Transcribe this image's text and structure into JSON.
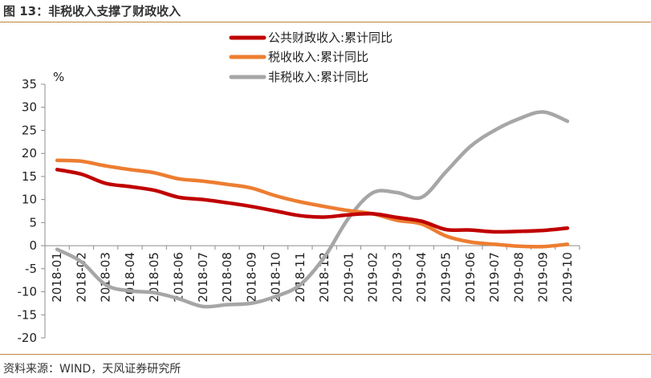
{
  "figure": {
    "title": "图 13：非税收入支撑了财政收入",
    "source": "资料来源：WIND，天风证券研究所"
  },
  "chart_data": {
    "type": "line",
    "ylabel": "%",
    "ylim": [
      -20,
      35
    ],
    "yticks": [
      35,
      30,
      25,
      20,
      15,
      10,
      5,
      0,
      -5,
      -10,
      -15,
      -20
    ],
    "categories": [
      "2018-01",
      "2018-02",
      "2018-03",
      "2018-04",
      "2018-05",
      "2018-06",
      "2018-07",
      "2018-08",
      "2018-09",
      "2018-10",
      "2018-11",
      "2018-12",
      "2019-01",
      "2019-02",
      "2019-03",
      "2019-04",
      "2019-05",
      "2019-06",
      "2019-07",
      "2019-08",
      "2019-09",
      "2019-10"
    ],
    "legend_position": "top",
    "grid": false,
    "series": [
      {
        "name": "公共财政收入:累计同比",
        "color": "#c00000",
        "values": [
          16.5,
          15.5,
          13.5,
          12.8,
          12.0,
          10.5,
          10.0,
          9.3,
          8.5,
          7.5,
          6.5,
          6.2,
          6.7,
          6.9,
          6.1,
          5.3,
          3.5,
          3.4,
          3.0,
          3.1,
          3.3,
          3.8
        ]
      },
      {
        "name": "税收收入:累计同比",
        "color": "#ed7d31",
        "values": [
          18.5,
          18.3,
          17.3,
          16.5,
          15.8,
          14.5,
          14.0,
          13.3,
          12.5,
          10.8,
          9.5,
          8.5,
          7.6,
          6.9,
          5.5,
          4.7,
          2.1,
          0.8,
          0.3,
          -0.1,
          -0.2,
          0.3
        ]
      },
      {
        "name": "非税收入:累计同比",
        "color": "#a6a6a6",
        "values": [
          -0.8,
          -3.5,
          -8.5,
          -9.8,
          -10.2,
          -11.5,
          -13.2,
          -12.8,
          -12.5,
          -11.0,
          -8.5,
          -2.5,
          6.0,
          11.5,
          11.5,
          10.5,
          16.0,
          21.5,
          25.0,
          27.5,
          29.0,
          27.0
        ]
      }
    ]
  }
}
